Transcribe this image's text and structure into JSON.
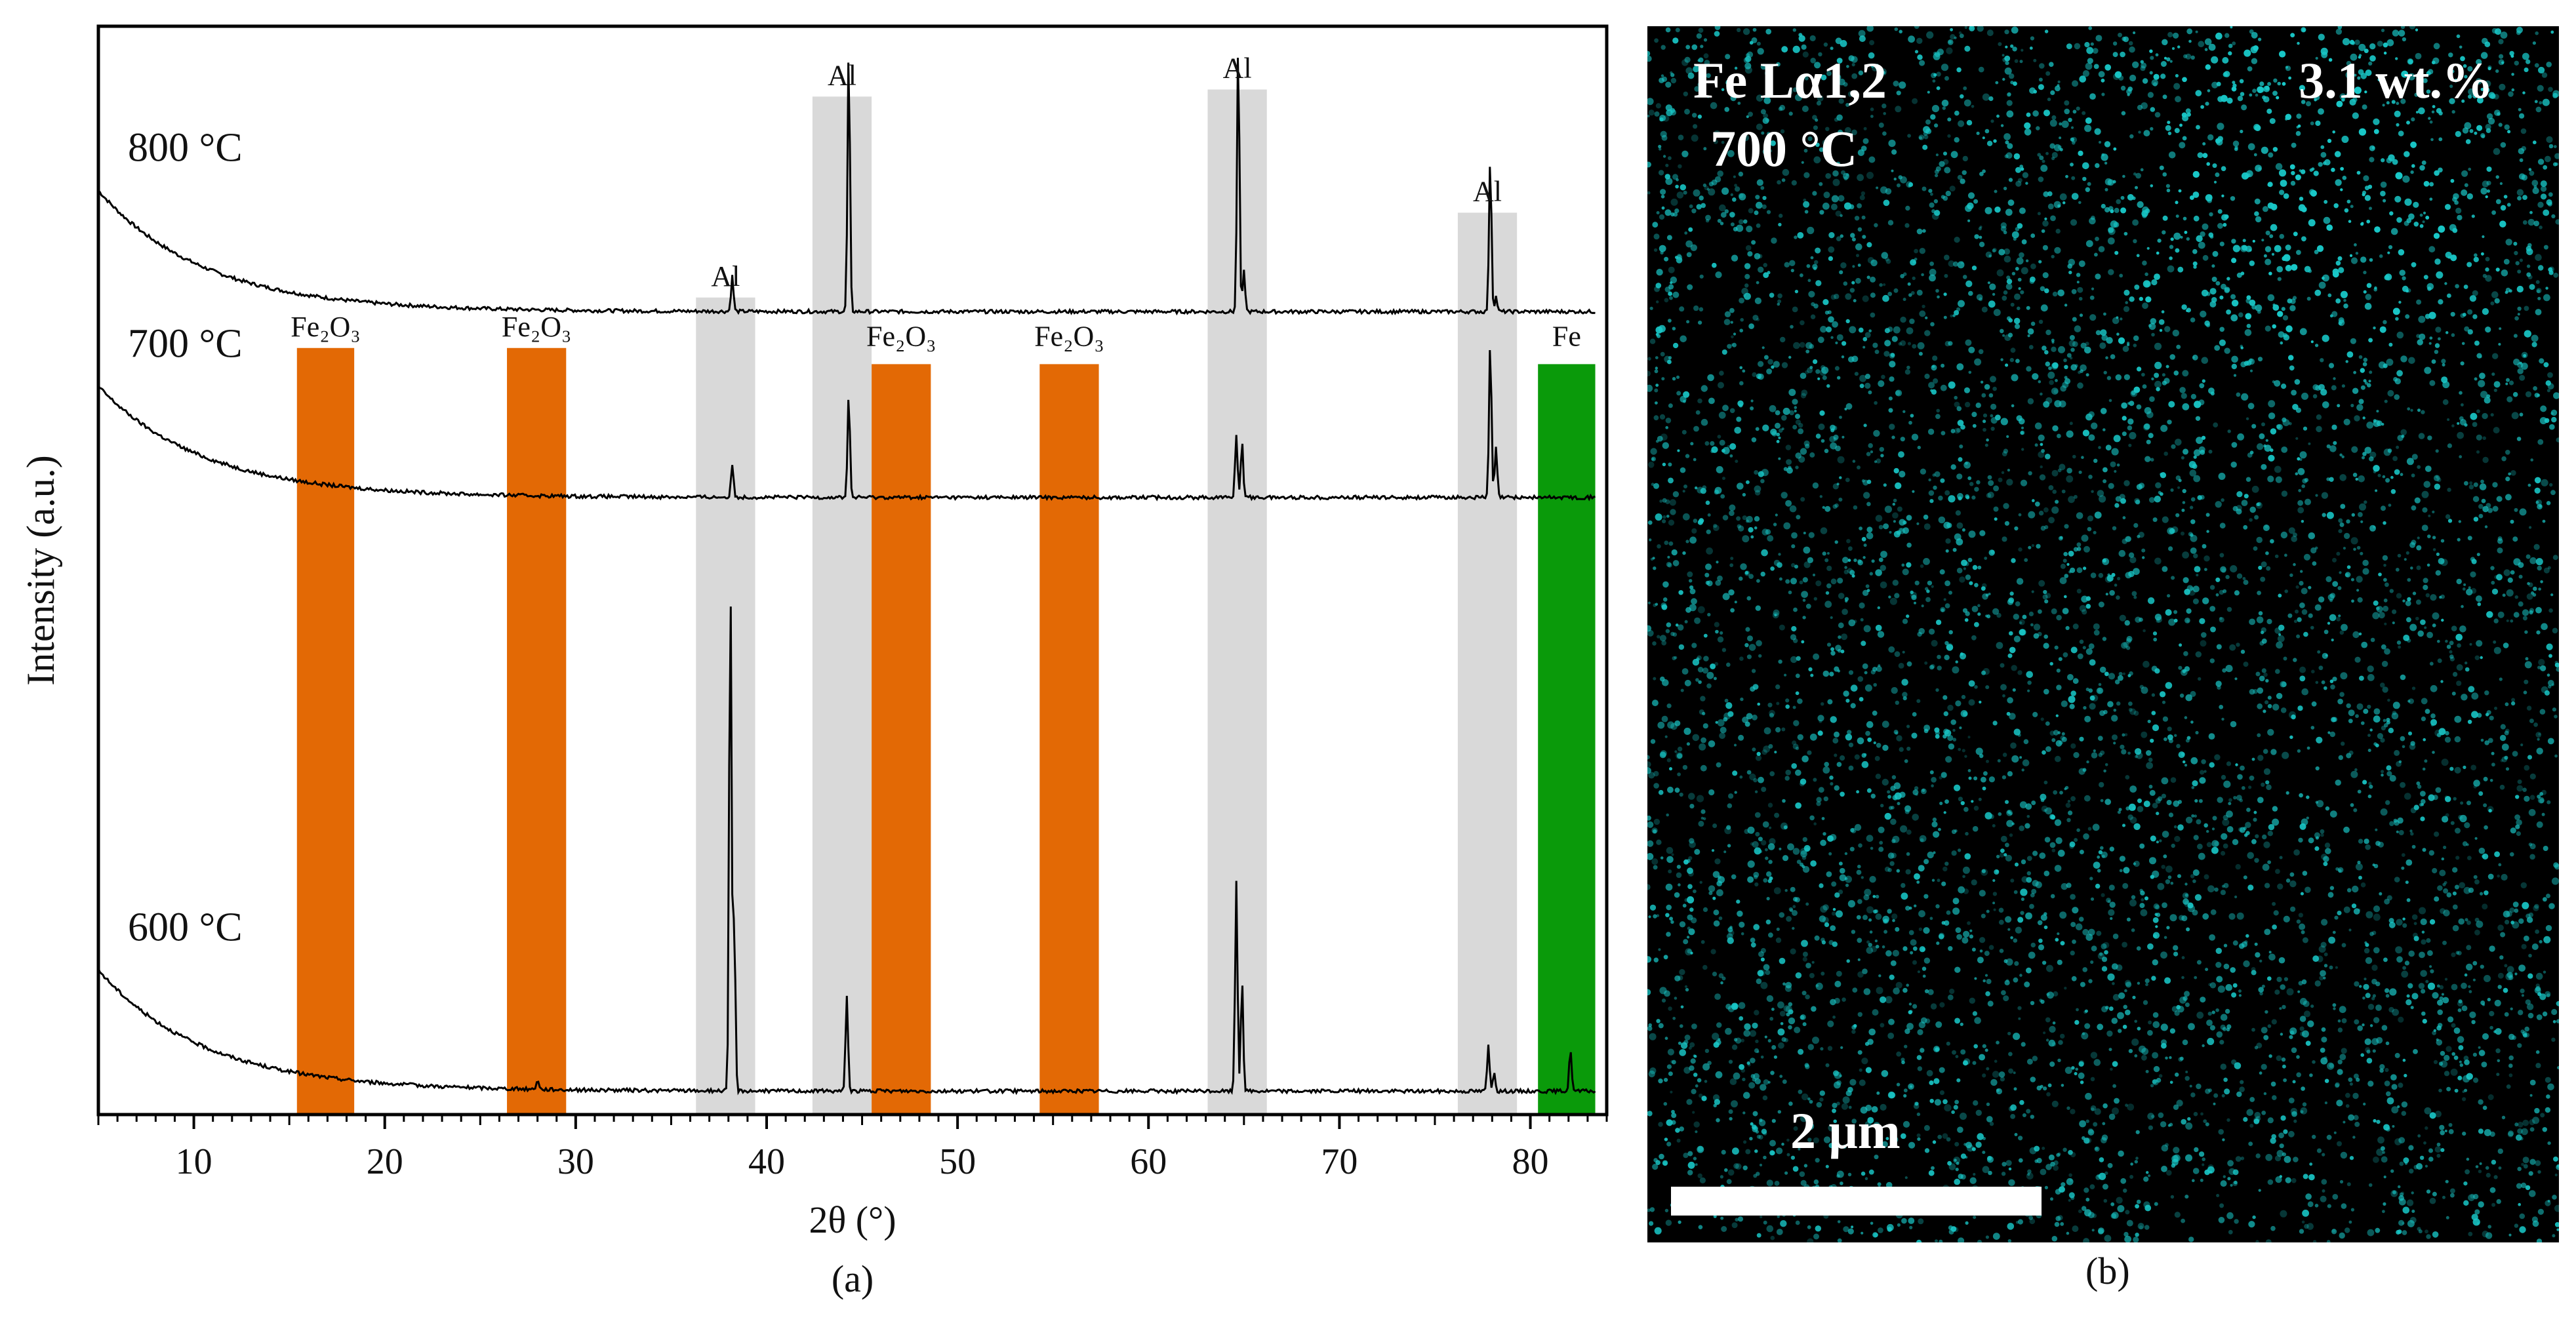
{
  "chart_data": [
    {
      "type": "line",
      "panel_label": "(a)",
      "xlabel": "2θ (°)",
      "ylabel": "Intensity (a.u.)",
      "xlim": [
        5,
        84
      ],
      "ylim": [
        0,
        100
      ],
      "xticks": [
        10,
        20,
        30,
        40,
        50,
        60,
        70,
        80
      ],
      "series": [
        {
          "name": "800 °C",
          "baseline": 79.2,
          "curve_amp": 12,
          "curve_decay": 5.5,
          "peaks": [
            [
              38.2,
              3.5
            ],
            [
              44.3,
              25.8
            ],
            [
              64.7,
              26.5
            ],
            [
              65.0,
              4
            ],
            [
              77.9,
              15.2
            ],
            [
              78.2,
              1.5
            ]
          ]
        },
        {
          "name": "700 °C",
          "baseline": 60.8,
          "curve_amp": 11,
          "curve_decay": 5.5,
          "peaks": [
            [
              38.2,
              3.3
            ],
            [
              44.3,
              10.1
            ],
            [
              64.6,
              6.3
            ],
            [
              64.9,
              5.5
            ],
            [
              77.9,
              15.2
            ],
            [
              78.2,
              5
            ]
          ]
        },
        {
          "name": "600 °C",
          "baseline": 2.0,
          "curve_amp": 12,
          "curve_decay": 5.5,
          "peaks": [
            [
              28.0,
              1
            ],
            [
              38.1,
              49.9
            ],
            [
              38.3,
              17
            ],
            [
              44.2,
              9.6
            ],
            [
              64.6,
              20.8
            ],
            [
              64.9,
              11
            ],
            [
              77.8,
              4.5
            ],
            [
              78.1,
              2
            ],
            [
              82.1,
              4.2
            ]
          ]
        }
      ],
      "bands": [
        {
          "label": "Fe₂O₃",
          "x0": 15.4,
          "x1": 18.4,
          "top": 75.6,
          "label_above": true,
          "color": "#e36905"
        },
        {
          "label": "Fe₂O₃",
          "x0": 26.4,
          "x1": 29.5,
          "top": 75.6,
          "label_above": true,
          "color": "#e36905"
        },
        {
          "label": "Al",
          "x0": 36.3,
          "x1": 39.4,
          "top": 80.6,
          "label_above": true,
          "color": "#d9d9d9"
        },
        {
          "label": "Al",
          "x0": 42.4,
          "x1": 45.5,
          "top": 100.5,
          "label_above": true,
          "color": "#d9d9d9"
        },
        {
          "label": "Fe₂O₃",
          "x0": 45.5,
          "x1": 48.6,
          "top": 74.0,
          "label_above": false,
          "color": "#e36905"
        },
        {
          "label": "Fe₂O₃",
          "x0": 54.3,
          "x1": 57.4,
          "top": 74.0,
          "label_above": false,
          "color": "#e36905"
        },
        {
          "label": "Al",
          "x0": 63.1,
          "x1": 66.2,
          "top": 101.2,
          "label_above": true,
          "color": "#d9d9d9"
        },
        {
          "label": "Al",
          "x0": 76.2,
          "x1": 79.3,
          "top": 89.0,
          "label_above": true,
          "color": "#d9d9d9"
        },
        {
          "label": "Fe",
          "x0": 80.4,
          "x1": 83.4,
          "top": 74.0,
          "label_above": false,
          "color": "#0a9a0a"
        }
      ]
    },
    {
      "type": "heatmap",
      "panel_label": "(b)",
      "element_line": "Fe Lα1,2",
      "temperature": "700 °C",
      "concentration": "3.1 wt.%",
      "scale_bar": "2 μm",
      "color": "#19c8c8"
    }
  ]
}
